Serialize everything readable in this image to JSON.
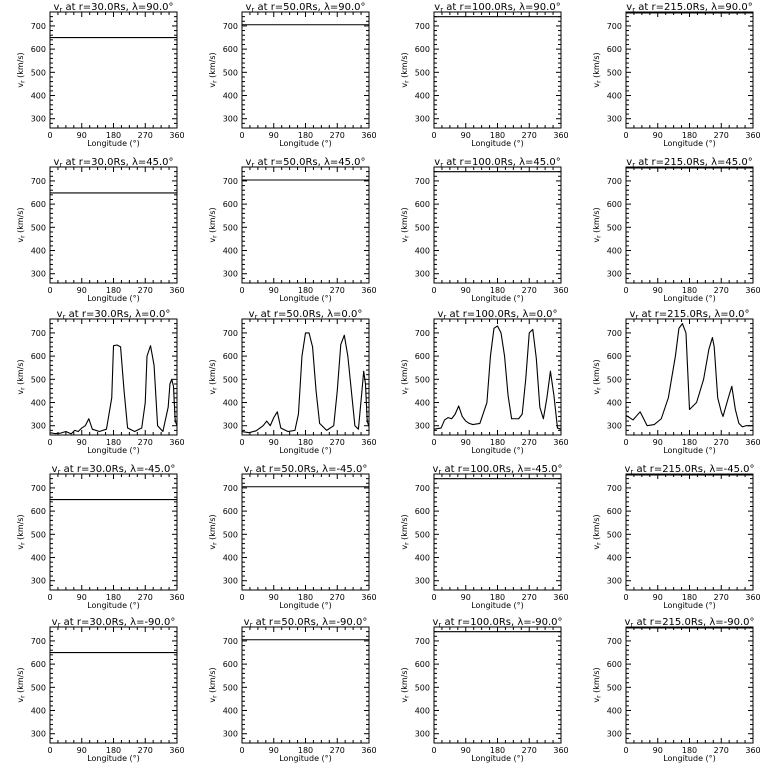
{
  "chart_data": {
    "type": "line",
    "rows": 5,
    "cols": 4,
    "xlabel": "Longitude (°)",
    "ylabel": "v_r (km/s)",
    "xlim": [
      0,
      360
    ],
    "ylim": [
      260,
      760
    ],
    "xticks": [
      0,
      90,
      180,
      270,
      360
    ],
    "yticks": [
      300,
      400,
      500,
      600,
      700
    ],
    "grid": false,
    "line_color": "#000000",
    "panels": [
      {
        "title": "v_r at r=30.0Rs, λ=90.0°",
        "constant": 650
      },
      {
        "title": "v_r at r=50.0Rs, λ=90.0°",
        "constant": 705
      },
      {
        "title": "v_r at r=100.0Rs, λ=90.0°",
        "constant": 740
      },
      {
        "title": "v_r at r=215.0Rs, λ=90.0°",
        "constant": 756
      },
      {
        "title": "v_r at r=30.0Rs, λ=45.0°",
        "constant": 648
      },
      {
        "title": "v_r at r=50.0Rs, λ=45.0°",
        "constant": 704
      },
      {
        "title": "v_r at r=100.0Rs, λ=45.0°",
        "constant": 740
      },
      {
        "title": "v_r at r=215.0Rs, λ=45.0°",
        "constant": 756
      },
      {
        "title": "v_r at r=30.0Rs, λ=0.0°",
        "x": [
          0,
          15,
          30,
          45,
          60,
          70,
          80,
          90,
          100,
          110,
          120,
          140,
          160,
          175,
          180,
          190,
          200,
          210,
          220,
          240,
          260,
          270,
          275,
          285,
          295,
          305,
          320,
          335,
          340,
          345,
          350,
          355,
          360
        ],
        "y": [
          270,
          266,
          268,
          275,
          265,
          280,
          275,
          290,
          300,
          330,
          285,
          275,
          285,
          420,
          645,
          648,
          640,
          450,
          290,
          275,
          290,
          400,
          600,
          645,
          560,
          300,
          275,
          380,
          480,
          500,
          470,
          320,
          300
        ]
      },
      {
        "title": "v_r at r=50.0Rs, λ=0.0°",
        "x": [
          0,
          20,
          40,
          60,
          70,
          80,
          90,
          100,
          110,
          130,
          150,
          160,
          170,
          180,
          190,
          200,
          210,
          220,
          240,
          260,
          270,
          280,
          290,
          300,
          320,
          330,
          340,
          345,
          350,
          355,
          360
        ],
        "y": [
          275,
          270,
          278,
          300,
          320,
          300,
          335,
          360,
          290,
          275,
          280,
          350,
          600,
          700,
          700,
          640,
          450,
          310,
          280,
          300,
          450,
          650,
          690,
          600,
          300,
          285,
          450,
          535,
          480,
          320,
          295
        ]
      },
      {
        "title": "v_r at r=100.0Rs, λ=0.0°",
        "x": [
          0,
          20,
          30,
          40,
          50,
          60,
          70,
          80,
          90,
          100,
          110,
          130,
          150,
          160,
          170,
          180,
          190,
          200,
          210,
          220,
          240,
          250,
          260,
          270,
          280,
          290,
          300,
          310,
          320,
          330,
          340,
          350,
          360
        ],
        "y": [
          285,
          290,
          325,
          335,
          330,
          350,
          385,
          340,
          320,
          310,
          305,
          310,
          400,
          600,
          720,
          730,
          700,
          600,
          430,
          330,
          330,
          350,
          500,
          700,
          715,
          590,
          380,
          330,
          420,
          535,
          430,
          290,
          285
        ]
      },
      {
        "title": "v_r at r=215.0Rs, λ=0.0°",
        "x": [
          0,
          20,
          40,
          60,
          80,
          100,
          120,
          140,
          150,
          160,
          170,
          180,
          200,
          220,
          235,
          245,
          250,
          260,
          270,
          275,
          290,
          300,
          310,
          320,
          330,
          340,
          360
        ],
        "y": [
          345,
          325,
          360,
          300,
          305,
          330,
          420,
          600,
          720,
          740,
          700,
          370,
          400,
          500,
          630,
          680,
          640,
          420,
          360,
          340,
          420,
          470,
          370,
          310,
          295,
          300,
          300
        ]
      },
      {
        "title": "v_r at r=30.0Rs, λ=-45.0°",
        "constant": 650
      },
      {
        "title": "v_r at r=50.0Rs, λ=-45.0°",
        "constant": 705
      },
      {
        "title": "v_r at r=100.0Rs, λ=-45.0°",
        "constant": 740
      },
      {
        "title": "v_r at r=215.0Rs, λ=-45.0°",
        "constant": 756
      },
      {
        "title": "v_r at r=30.0Rs, λ=-90.0°",
        "constant": 650
      },
      {
        "title": "v_r at r=50.0Rs, λ=-90.0°",
        "constant": 705
      },
      {
        "title": "v_r at r=100.0Rs, λ=-90.0°",
        "constant": 740
      },
      {
        "title": "v_r at r=215.0Rs, λ=-90.0°",
        "constant": 756
      }
    ]
  }
}
